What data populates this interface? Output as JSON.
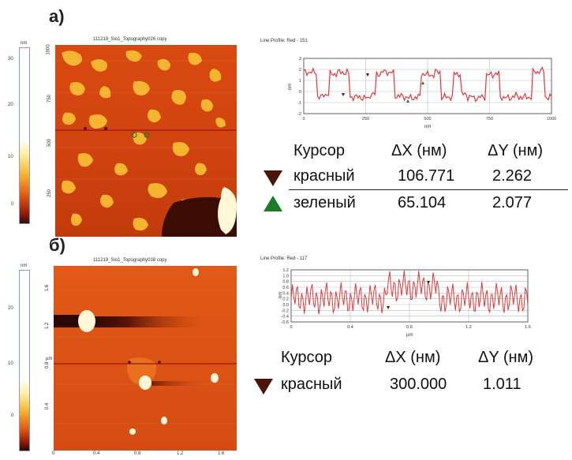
{
  "panel_a": {
    "label": "а)",
    "colorbar": {
      "unit": "nm",
      "ticks": [
        "30",
        "20",
        "10",
        "0"
      ]
    },
    "image_title": "111219_Sio1_Topography026 copy",
    "y_ticks": [
      "1000",
      "750",
      "500",
      "250"
    ],
    "profile_title": "Line Profile: Red - 151",
    "profile_ylabel": "nm",
    "profile_xlabel": "nm",
    "profile_y_ticks": [
      "3",
      "2",
      "1",
      "0",
      "-1",
      "-2"
    ],
    "profile_x_ticks": [
      "0",
      "250",
      "500",
      "750",
      "1000"
    ],
    "table": {
      "headers": [
        "Курсор",
        "ΔX (нм)",
        "ΔY (нм)"
      ],
      "rows": [
        {
          "name": "красный",
          "dx": "106.771",
          "dy": "2.262",
          "marker": "down",
          "color": "#4a1508"
        },
        {
          "name": "зеленый",
          "dx": "65.104",
          "dy": "2.077",
          "marker": "up",
          "color": "#1c7a2a"
        }
      ]
    }
  },
  "panel_b": {
    "label": "б)",
    "colorbar": {
      "unit": "nm",
      "ticks": [
        "20",
        "10",
        "0"
      ]
    },
    "image_title": "111219_Sio1_Topography038 copy",
    "y_ticks": [
      "1.6",
      "1.2",
      "0.8",
      "0.4"
    ],
    "y_unit": "µm",
    "x_ticks": [
      "0",
      "0.4",
      "0.8",
      "1.2",
      "1.6"
    ],
    "profile_title": "Line Profile: Red - 117",
    "profile_ylabel": "nm",
    "profile_xlabel": "µm",
    "profile_y_ticks": [
      "1.2",
      "1.0",
      "0.8",
      "0.6",
      "0.4",
      "0.2",
      "0.0",
      "-0.2",
      "-0.4",
      "-0.6"
    ],
    "profile_x_ticks": [
      "0",
      "0.4",
      "0.8",
      "1.2",
      "1.6"
    ],
    "table": {
      "headers": [
        "Курсор",
        "ΔX (нм)",
        "ΔY (нм)"
      ],
      "rows": [
        {
          "name": "красный",
          "dx": "300.000",
          "dy": "1.011",
          "marker": "down",
          "color": "#4a1508"
        }
      ]
    }
  },
  "colors": {
    "profile_line": "#e0393b",
    "scan_line": "#a01010",
    "afm_dark": "#3a0c04",
    "afm_mid": "#d9480f",
    "afm_light": "#f7c43a"
  }
}
